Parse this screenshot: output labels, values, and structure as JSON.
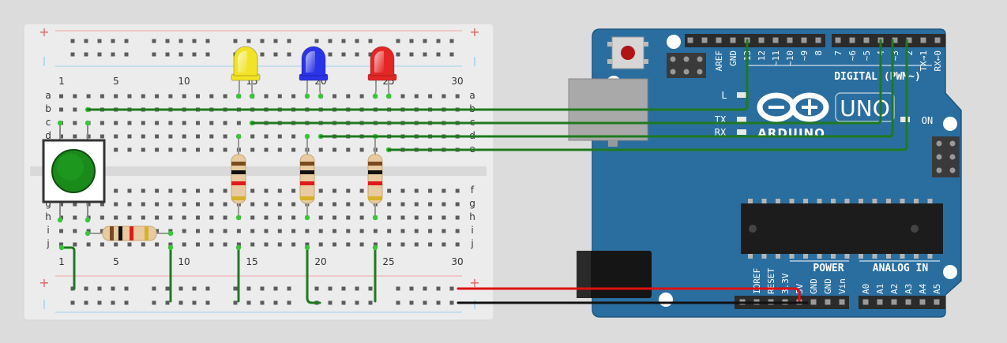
{
  "breadboard": {
    "rails": {
      "plus": "+",
      "minus": "−"
    },
    "col_labels": [
      "1",
      "5",
      "10",
      "15",
      "20",
      "25",
      "30"
    ],
    "rows_top": [
      "a",
      "b",
      "c",
      "d",
      "e"
    ],
    "rows_bottom": [
      "f",
      "g",
      "h",
      "i",
      "j"
    ]
  },
  "leds": [
    {
      "name": "yellow-led",
      "color": "#f2e325"
    },
    {
      "name": "blue-led",
      "color": "#2a33e6"
    },
    {
      "name": "red-led",
      "color": "#e52626"
    }
  ],
  "arduino": {
    "logo_text": "ARDUINO",
    "model": "UNO",
    "digital_label": "DIGITAL (PWM~)",
    "power_label": "POWER",
    "analog_label": "ANALOG IN",
    "on_label": "ON",
    "led_labels": {
      "l": "L",
      "tx": "TX",
      "rx": "RX"
    },
    "digital_pins_left": [
      "AREF",
      "GND",
      "13",
      "12",
      "~11",
      "~10",
      "~9",
      "8"
    ],
    "digital_pins_right": [
      "7",
      "~6",
      "~5",
      "4",
      "~3",
      "2",
      "TX→1",
      "RX←0"
    ],
    "power_pins": [
      "IOREF",
      "RESET",
      "3.3V",
      "5V",
      "GND",
      "GND",
      "Vin"
    ],
    "analog_pins": [
      "A0",
      "A1",
      "A2",
      "A3",
      "A4",
      "A5"
    ]
  },
  "colors": {
    "board_blue": "#2a6ea0",
    "wire_green": "#1e7a1e",
    "wire_red": "#e01010",
    "wire_black": "#111111",
    "button_green": "#1a8a1a"
  }
}
